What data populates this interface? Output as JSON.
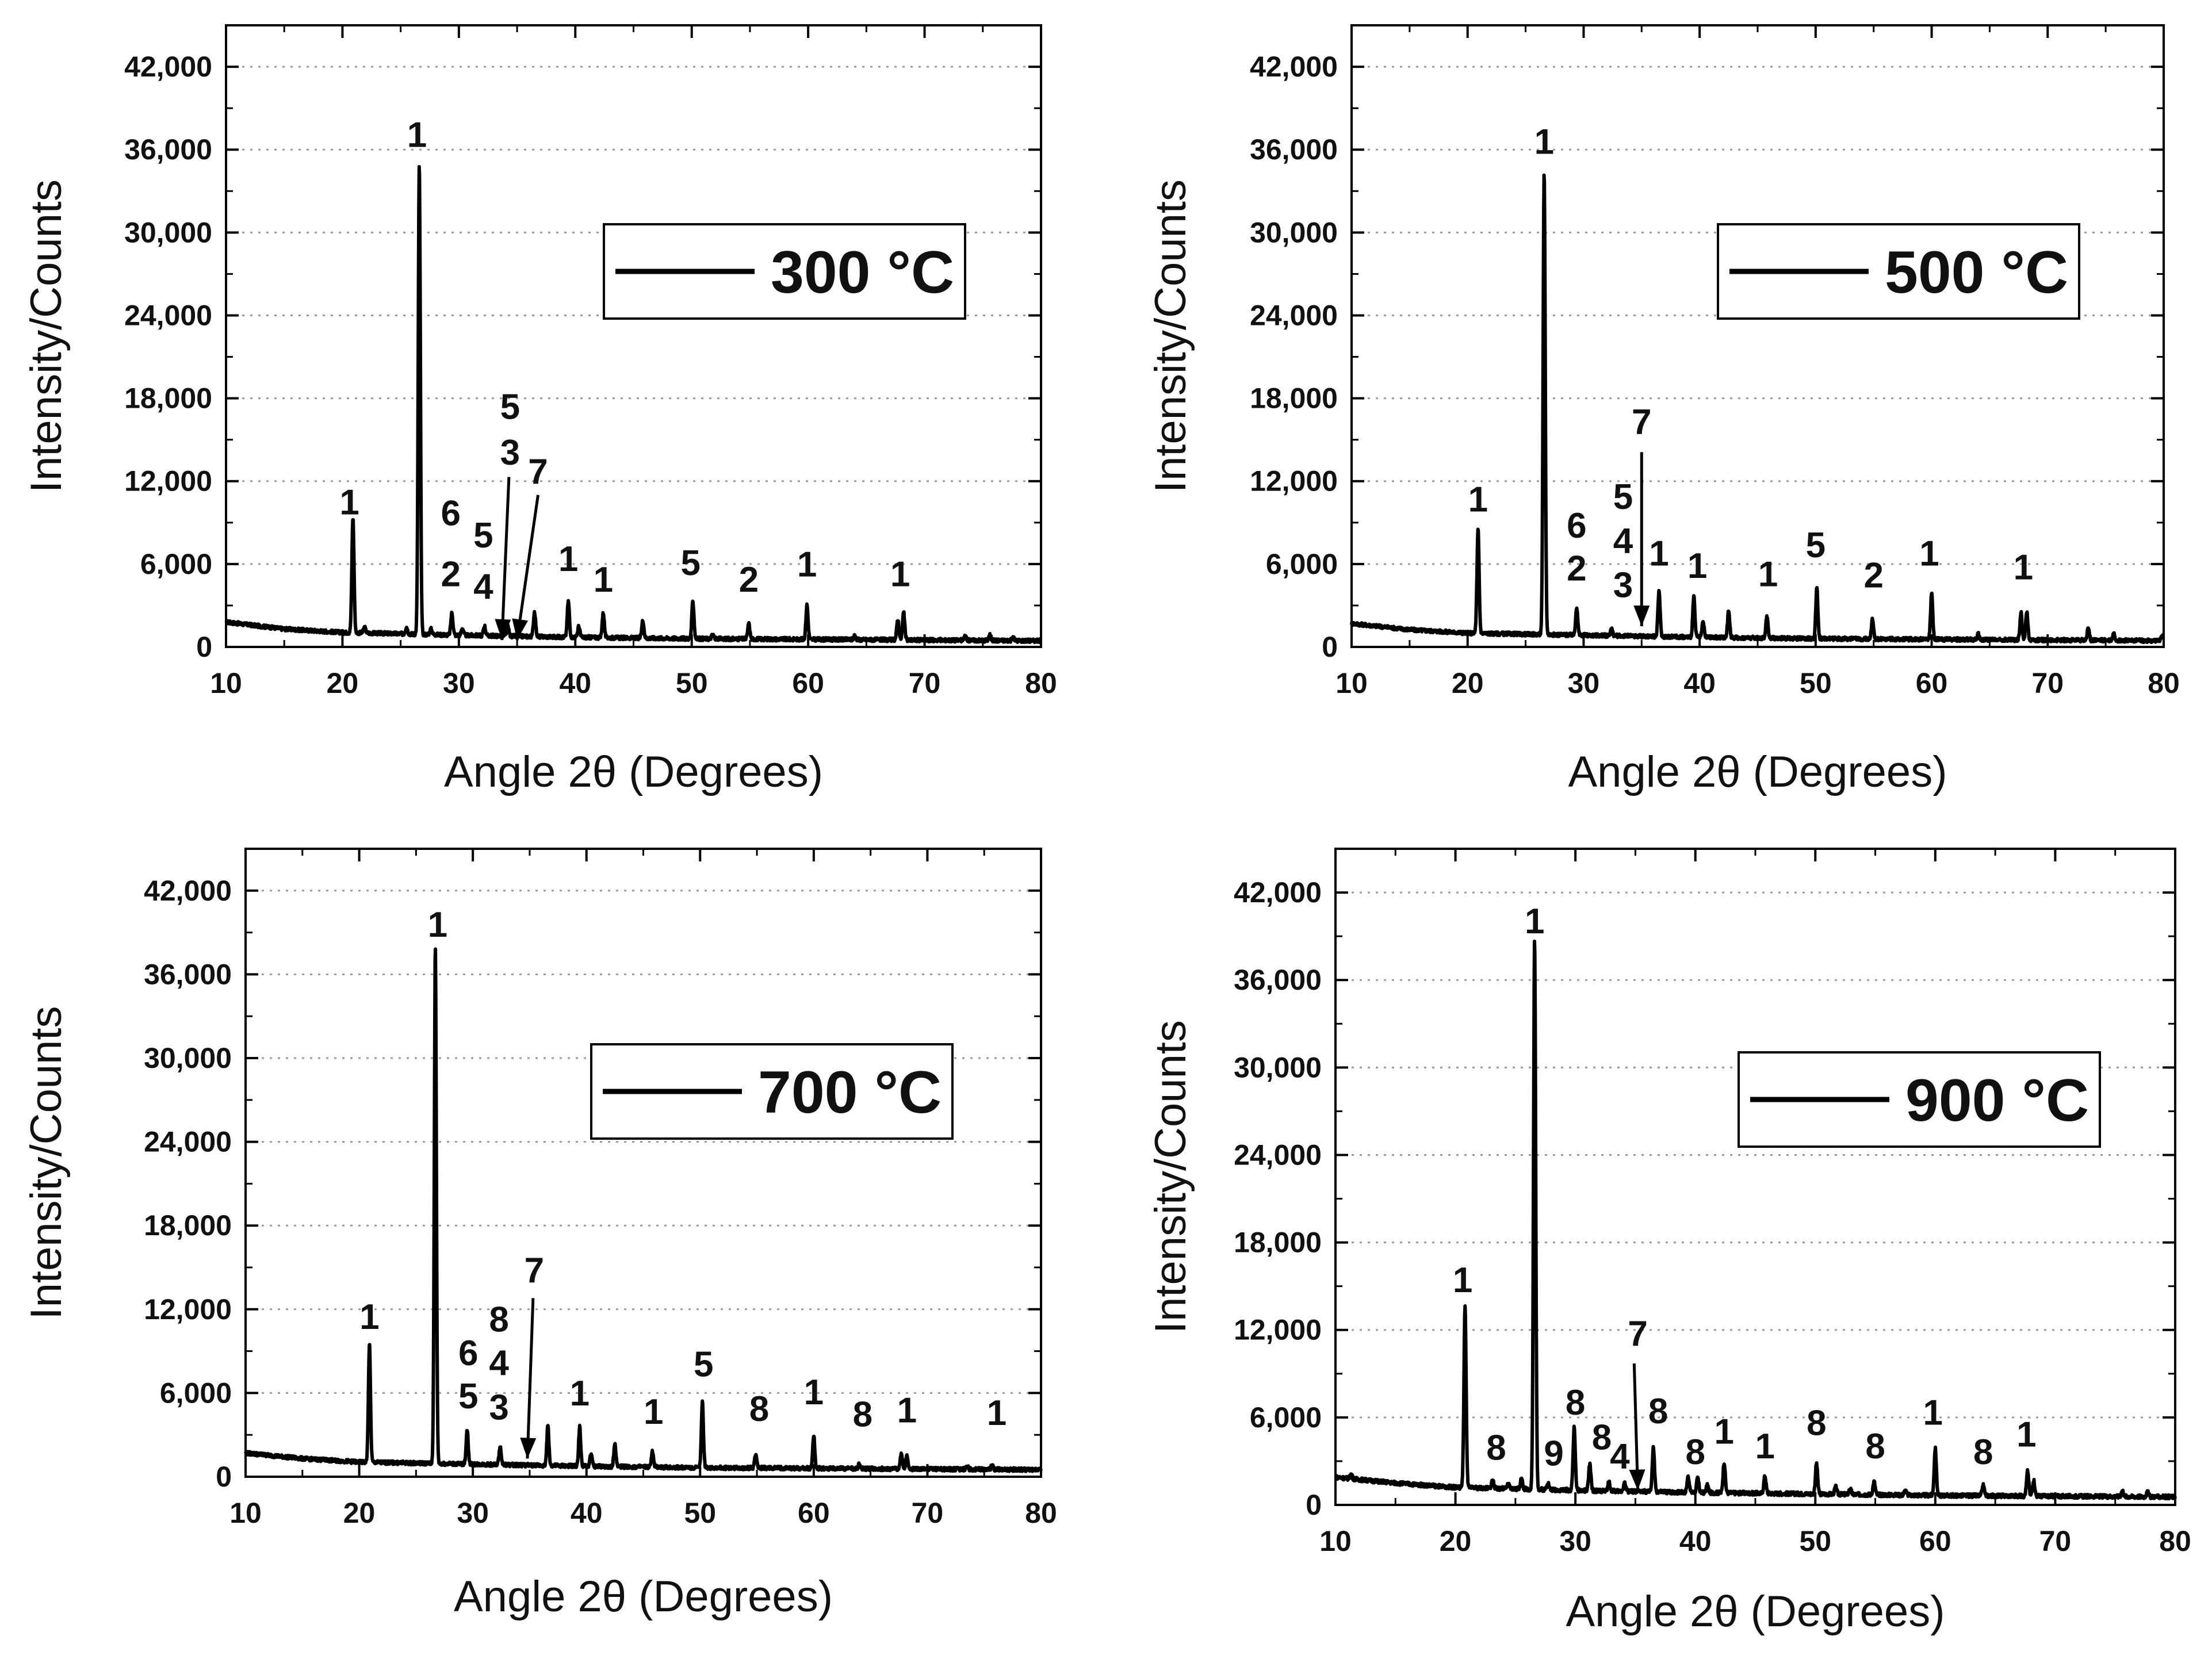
{
  "chart_data": [
    {
      "type": "line",
      "title": "",
      "legend": "300 °C",
      "xlabel": "Angle 2θ (Degrees)",
      "ylabel": "Intensity/Counts",
      "xlim": [
        10,
        80
      ],
      "ylim": [
        0,
        45000
      ],
      "xticks": [
        10,
        20,
        30,
        40,
        50,
        60,
        70,
        80
      ],
      "xtick_labels": [
        "10",
        "20",
        "30",
        "40",
        "50",
        "60",
        "70",
        "80"
      ],
      "yticks": [
        0,
        6000,
        12000,
        18000,
        24000,
        30000,
        36000,
        42000
      ],
      "ytick_labels": [
        "0",
        "6,000",
        "12,000",
        "18,000",
        "24,000",
        "30,000",
        "36,000",
        "42,000"
      ],
      "grid": "horizontal dotted",
      "legend_position": "top-right",
      "background": [
        [
          10,
          1800
        ],
        [
          15,
          1300
        ],
        [
          20,
          1050
        ],
        [
          30,
          850
        ],
        [
          40,
          700
        ],
        [
          50,
          600
        ],
        [
          60,
          550
        ],
        [
          70,
          500
        ],
        [
          80,
          450
        ]
      ],
      "peaks": [
        {
          "x": 20.9,
          "y": 8300
        },
        {
          "x": 21.9,
          "y": 400
        },
        {
          "x": 25.5,
          "y": 500
        },
        {
          "x": 26.6,
          "y": 34000
        },
        {
          "x": 27.6,
          "y": 400
        },
        {
          "x": 29.4,
          "y": 1600
        },
        {
          "x": 30.3,
          "y": 500
        },
        {
          "x": 32.2,
          "y": 700
        },
        {
          "x": 34.2,
          "y": 700
        },
        {
          "x": 36.5,
          "y": 1800
        },
        {
          "x": 39.4,
          "y": 2600
        },
        {
          "x": 40.3,
          "y": 800
        },
        {
          "x": 42.4,
          "y": 1800
        },
        {
          "x": 45.8,
          "y": 1300
        },
        {
          "x": 50.1,
          "y": 2700
        },
        {
          "x": 51.8,
          "y": 300
        },
        {
          "x": 54.9,
          "y": 1100
        },
        {
          "x": 59.9,
          "y": 2500
        },
        {
          "x": 64.0,
          "y": 300
        },
        {
          "x": 67.7,
          "y": 1500
        },
        {
          "x": 68.2,
          "y": 2000
        },
        {
          "x": 73.5,
          "y": 300
        },
        {
          "x": 75.6,
          "y": 400
        },
        {
          "x": 77.6,
          "y": 200
        }
      ],
      "annotations": [
        {
          "text": "1",
          "x": 20.6,
          "y": 9600
        },
        {
          "text": "1",
          "x": 26.4,
          "y": 36200
        },
        {
          "text": "6",
          "x": 29.3,
          "y": 8800
        },
        {
          "text": "2",
          "x": 29.3,
          "y": 4400
        },
        {
          "text": "5",
          "x": 32.1,
          "y": 7200
        },
        {
          "text": "4",
          "x": 32.1,
          "y": 3500
        },
        {
          "text": "5",
          "x": 34.4,
          "y": 16500
        },
        {
          "text": "3",
          "x": 34.4,
          "y": 13200
        },
        {
          "text": "7",
          "x": 36.8,
          "y": 11800
        },
        {
          "text": "1",
          "x": 39.4,
          "y": 5500
        },
        {
          "text": "1",
          "x": 42.4,
          "y": 4000
        },
        {
          "text": "5",
          "x": 49.9,
          "y": 5200
        },
        {
          "text": "2",
          "x": 54.9,
          "y": 4000
        },
        {
          "text": "1",
          "x": 59.9,
          "y": 5100
        },
        {
          "text": "1",
          "x": 67.9,
          "y": 4400
        }
      ],
      "arrows": [
        {
          "from": [
            34.3,
            12300
          ],
          "to": [
            33.7,
            500
          ]
        },
        {
          "from": [
            36.8,
            11000
          ],
          "to": [
            35.0,
            500
          ]
        }
      ]
    },
    {
      "type": "line",
      "title": "",
      "legend": "500 °C",
      "xlabel": "Angle 2θ (Degrees)",
      "ylabel": "Intensity/Counts",
      "xlim": [
        10,
        80
      ],
      "ylim": [
        0,
        45000
      ],
      "xticks": [
        10,
        20,
        30,
        40,
        50,
        60,
        70,
        80
      ],
      "xtick_labels": [
        "10",
        "20",
        "30",
        "40",
        "50",
        "60",
        "70",
        "80"
      ],
      "yticks": [
        0,
        6000,
        12000,
        18000,
        24000,
        30000,
        36000,
        42000
      ],
      "ytick_labels": [
        "0",
        "6,000",
        "12,000",
        "18,000",
        "24,000",
        "30,000",
        "36,000",
        "42,000"
      ],
      "grid": "horizontal dotted",
      "legend_position": "top-right",
      "background": [
        [
          10,
          1700
        ],
        [
          15,
          1250
        ],
        [
          20,
          1000
        ],
        [
          30,
          850
        ],
        [
          40,
          700
        ],
        [
          50,
          600
        ],
        [
          60,
          550
        ],
        [
          70,
          500
        ],
        [
          80,
          450
        ]
      ],
      "peaks": [
        {
          "x": 20.9,
          "y": 7500
        },
        {
          "x": 26.6,
          "y": 33500
        },
        {
          "x": 29.4,
          "y": 2000
        },
        {
          "x": 32.4,
          "y": 500
        },
        {
          "x": 36.5,
          "y": 3300
        },
        {
          "x": 39.5,
          "y": 2900
        },
        {
          "x": 40.3,
          "y": 1100
        },
        {
          "x": 42.5,
          "y": 2000
        },
        {
          "x": 45.8,
          "y": 1600
        },
        {
          "x": 50.1,
          "y": 3700
        },
        {
          "x": 54.9,
          "y": 1500
        },
        {
          "x": 60.0,
          "y": 3400
        },
        {
          "x": 64.0,
          "y": 400
        },
        {
          "x": 67.7,
          "y": 2000
        },
        {
          "x": 68.2,
          "y": 2100
        },
        {
          "x": 73.5,
          "y": 900
        },
        {
          "x": 75.7,
          "y": 500
        },
        {
          "x": 79.9,
          "y": 400
        }
      ],
      "annotations": [
        {
          "text": "1",
          "x": 20.9,
          "y": 9800
        },
        {
          "text": "1",
          "x": 26.6,
          "y": 35700
        },
        {
          "text": "6",
          "x": 29.4,
          "y": 7900
        },
        {
          "text": "2",
          "x": 29.4,
          "y": 4800
        },
        {
          "text": "5",
          "x": 33.4,
          "y": 10000
        },
        {
          "text": "4",
          "x": 33.4,
          "y": 6800
        },
        {
          "text": "3",
          "x": 33.4,
          "y": 3600
        },
        {
          "text": "7",
          "x": 35.0,
          "y": 15400
        },
        {
          "text": "1",
          "x": 36.5,
          "y": 5900
        },
        {
          "text": "1",
          "x": 39.8,
          "y": 5000
        },
        {
          "text": "1",
          "x": 45.9,
          "y": 4400
        },
        {
          "text": "5",
          "x": 50.0,
          "y": 6500
        },
        {
          "text": "2",
          "x": 55.0,
          "y": 4300
        },
        {
          "text": "1",
          "x": 59.8,
          "y": 5900
        },
        {
          "text": "1",
          "x": 67.9,
          "y": 4900
        }
      ],
      "arrows": [
        {
          "from": [
            35.0,
            14100
          ],
          "to": [
            35.0,
            1500
          ]
        }
      ]
    },
    {
      "type": "line",
      "title": "",
      "legend": "700 °C",
      "xlabel": "Angle 2θ (Degrees)",
      "ylabel": "Intensity/Counts",
      "xlim": [
        10,
        80
      ],
      "ylim": [
        0,
        45000
      ],
      "xticks": [
        10,
        20,
        30,
        40,
        50,
        60,
        70,
        80
      ],
      "xtick_labels": [
        "10",
        "20",
        "30",
        "40",
        "50",
        "60",
        "70",
        "80"
      ],
      "yticks": [
        0,
        6000,
        12000,
        18000,
        24000,
        30000,
        36000,
        42000
      ],
      "ytick_labels": [
        "0",
        "6,000",
        "12,000",
        "18,000",
        "24,000",
        "30,000",
        "36,000",
        "42,000"
      ],
      "grid": "horizontal dotted",
      "legend_position": "top-right",
      "background": [
        [
          10,
          1700
        ],
        [
          15,
          1300
        ],
        [
          20,
          1050
        ],
        [
          30,
          900
        ],
        [
          40,
          750
        ],
        [
          50,
          650
        ],
        [
          60,
          600
        ],
        [
          70,
          550
        ],
        [
          80,
          500
        ]
      ],
      "peaks": [
        {
          "x": 20.9,
          "y": 8500
        },
        {
          "x": 26.7,
          "y": 37000
        },
        {
          "x": 29.5,
          "y": 2500
        },
        {
          "x": 32.4,
          "y": 1300
        },
        {
          "x": 36.6,
          "y": 2900
        },
        {
          "x": 39.4,
          "y": 2800
        },
        {
          "x": 40.4,
          "y": 900
        },
        {
          "x": 42.5,
          "y": 1600
        },
        {
          "x": 45.8,
          "y": 1100
        },
        {
          "x": 50.2,
          "y": 4700
        },
        {
          "x": 54.9,
          "y": 1000
        },
        {
          "x": 60.0,
          "y": 2400
        },
        {
          "x": 64.0,
          "y": 300
        },
        {
          "x": 67.7,
          "y": 1100
        },
        {
          "x": 68.2,
          "y": 1000
        },
        {
          "x": 73.5,
          "y": 200
        },
        {
          "x": 75.7,
          "y": 300
        }
      ],
      "annotations": [
        {
          "text": "1",
          "x": 20.9,
          "y": 10600
        },
        {
          "text": "1",
          "x": 26.9,
          "y": 38700
        },
        {
          "text": "6",
          "x": 29.6,
          "y": 8000
        },
        {
          "text": "5",
          "x": 29.6,
          "y": 4900
        },
        {
          "text": "8",
          "x": 32.3,
          "y": 10400
        },
        {
          "text": "4",
          "x": 32.3,
          "y": 7300
        },
        {
          "text": "3",
          "x": 32.3,
          "y": 4100
        },
        {
          "text": "7",
          "x": 35.4,
          "y": 13900
        },
        {
          "text": "1",
          "x": 39.4,
          "y": 5100
        },
        {
          "text": "1",
          "x": 45.9,
          "y": 3800
        },
        {
          "text": "5",
          "x": 50.3,
          "y": 7200
        },
        {
          "text": "8",
          "x": 55.2,
          "y": 4000
        },
        {
          "text": "1",
          "x": 60.0,
          "y": 5200
        },
        {
          "text": "8",
          "x": 64.3,
          "y": 3600
        },
        {
          "text": "1",
          "x": 68.2,
          "y": 3900
        },
        {
          "text": "1",
          "x": 76.1,
          "y": 3700
        }
      ],
      "arrows": [
        {
          "from": [
            35.3,
            12800
          ],
          "to": [
            34.8,
            1300
          ]
        }
      ]
    },
    {
      "type": "line",
      "title": "",
      "legend": "900 °C",
      "xlabel": "Angle 2θ (Degrees)",
      "ylabel": "Intensity/Counts",
      "xlim": [
        10,
        80
      ],
      "ylim": [
        0,
        45000
      ],
      "xticks": [
        10,
        20,
        30,
        40,
        50,
        60,
        70,
        80
      ],
      "xtick_labels": [
        "10",
        "20",
        "30",
        "40",
        "50",
        "60",
        "70",
        "80"
      ],
      "yticks": [
        0,
        6000,
        12000,
        18000,
        24000,
        30000,
        36000,
        42000
      ],
      "ytick_labels": [
        "0",
        "6,000",
        "12,000",
        "18,000",
        "24,000",
        "30,000",
        "36,000",
        "42,000"
      ],
      "grid": "horizontal dotted",
      "legend_position": "top-right",
      "background": [
        [
          10,
          1900
        ],
        [
          15,
          1500
        ],
        [
          20,
          1200
        ],
        [
          30,
          1000
        ],
        [
          40,
          850
        ],
        [
          50,
          750
        ],
        [
          60,
          650
        ],
        [
          70,
          600
        ],
        [
          80,
          550
        ]
      ],
      "peaks": [
        {
          "x": 11.3,
          "y": 300
        },
        {
          "x": 20.8,
          "y": 12400
        },
        {
          "x": 23.1,
          "y": 600
        },
        {
          "x": 24.4,
          "y": 300
        },
        {
          "x": 25.5,
          "y": 700
        },
        {
          "x": 26.6,
          "y": 37800
        },
        {
          "x": 27.7,
          "y": 500
        },
        {
          "x": 29.9,
          "y": 4300
        },
        {
          "x": 31.2,
          "y": 1800
        },
        {
          "x": 32.8,
          "y": 600
        },
        {
          "x": 34.1,
          "y": 600
        },
        {
          "x": 36.5,
          "y": 3000
        },
        {
          "x": 39.4,
          "y": 1100
        },
        {
          "x": 40.2,
          "y": 1000
        },
        {
          "x": 41.0,
          "y": 500
        },
        {
          "x": 42.4,
          "y": 2100
        },
        {
          "x": 45.8,
          "y": 1200
        },
        {
          "x": 50.1,
          "y": 2100
        },
        {
          "x": 51.7,
          "y": 500
        },
        {
          "x": 52.9,
          "y": 400
        },
        {
          "x": 54.9,
          "y": 900
        },
        {
          "x": 57.5,
          "y": 300
        },
        {
          "x": 60.0,
          "y": 3200
        },
        {
          "x": 64.0,
          "y": 700
        },
        {
          "x": 67.7,
          "y": 1700
        },
        {
          "x": 68.2,
          "y": 1100
        },
        {
          "x": 75.6,
          "y": 400
        },
        {
          "x": 77.7,
          "y": 300
        }
      ],
      "annotations": [
        {
          "text": "1",
          "x": 20.6,
          "y": 14600
        },
        {
          "text": "1",
          "x": 26.6,
          "y": 39200
        },
        {
          "text": "8",
          "x": 23.4,
          "y": 3100
        },
        {
          "text": "9",
          "x": 28.2,
          "y": 2700
        },
        {
          "text": "8",
          "x": 30.0,
          "y": 6200
        },
        {
          "text": "8",
          "x": 32.2,
          "y": 3800
        },
        {
          "text": "4",
          "x": 33.7,
          "y": 2500
        },
        {
          "text": "7",
          "x": 35.2,
          "y": 10900
        },
        {
          "text": "8",
          "x": 36.9,
          "y": 5600
        },
        {
          "text": "8",
          "x": 40.0,
          "y": 2800
        },
        {
          "text": "1",
          "x": 42.4,
          "y": 4200
        },
        {
          "text": "1",
          "x": 45.8,
          "y": 3200
        },
        {
          "text": "8",
          "x": 50.1,
          "y": 4800
        },
        {
          "text": "8",
          "x": 55.0,
          "y": 3200
        },
        {
          "text": "1",
          "x": 59.8,
          "y": 5500
        },
        {
          "text": "8",
          "x": 64.0,
          "y": 2800
        },
        {
          "text": "1",
          "x": 67.6,
          "y": 4000
        }
      ],
      "arrows": [
        {
          "from": [
            34.9,
            9700
          ],
          "to": [
            35.2,
            1000
          ]
        }
      ]
    }
  ]
}
